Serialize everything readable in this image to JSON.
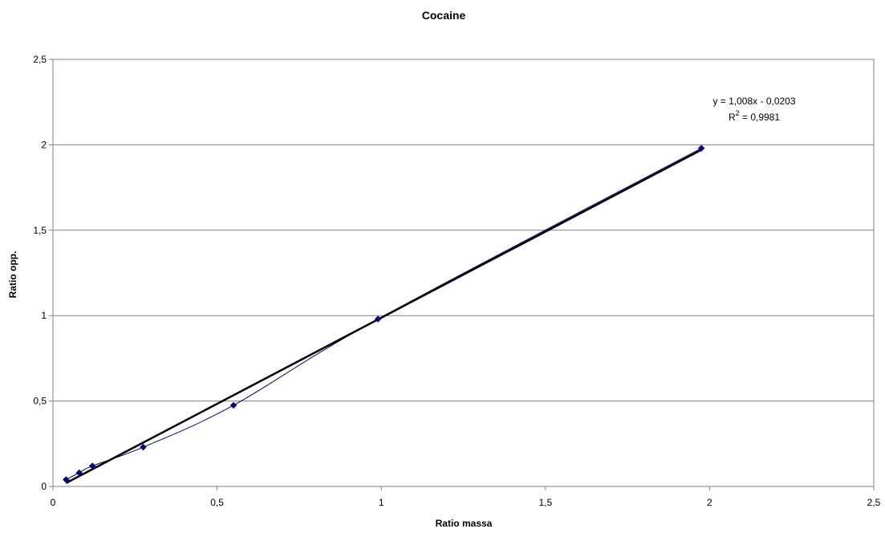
{
  "chart_data": {
    "type": "scatter",
    "title": "Cocaine",
    "xlabel": "Ratio massa",
    "ylabel": "Ratio opp.",
    "xlim": [
      0,
      2.5
    ],
    "ylim": [
      0,
      2.5
    ],
    "x_ticks": [
      "0",
      "0,5",
      "1",
      "1,5",
      "2",
      "2,5"
    ],
    "y_ticks": [
      "0",
      "0,5",
      "1",
      "1,5",
      "2",
      "2,5"
    ],
    "grid": "horizontal",
    "legend": "none",
    "series": [
      {
        "values": [
          {
            "x": 0.04,
            "y": 0.04
          },
          {
            "x": 0.08,
            "y": 0.08
          },
          {
            "x": 0.12,
            "y": 0.12
          },
          {
            "x": 0.275,
            "y": 0.23
          },
          {
            "x": 0.55,
            "y": 0.475
          },
          {
            "x": 0.99,
            "y": 0.98
          },
          {
            "x": 1.975,
            "y": 1.98
          }
        ],
        "color": "#000080",
        "marker": "diamond",
        "line": "smoothed"
      }
    ],
    "trendline": {
      "type": "linear",
      "slope": 1.008,
      "intercept": -0.0203,
      "x_range": [
        0.04,
        1.975
      ],
      "color": "#000000",
      "equation_label": "y = 1,008x - 0,0203",
      "r2_prefix": "R",
      "r2_sup": "2",
      "r2_value": " = 0,9981"
    }
  }
}
